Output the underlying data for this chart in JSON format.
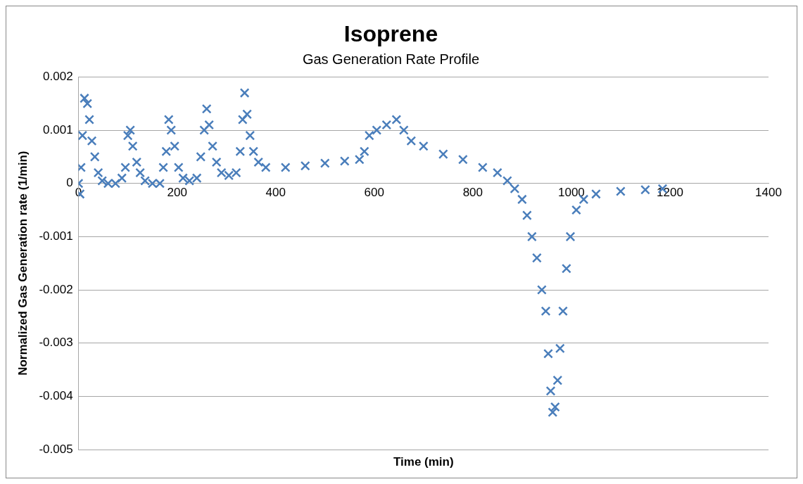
{
  "chart_data": {
    "type": "scatter",
    "title": "Isoprene",
    "subtitle": "Gas Generation Rate Profile",
    "xlabel": "Time (min)",
    "ylabel": "Normalized Gas Generation rate (1/min)",
    "xlim": [
      0,
      1400
    ],
    "xticks": [
      0,
      200,
      400,
      600,
      800,
      1000,
      1200,
      1400
    ],
    "ylim": [
      -0.005,
      0.002
    ],
    "yticks": [
      -0.005,
      -0.004,
      -0.003,
      -0.002,
      -0.001,
      0,
      0.001,
      0.002
    ],
    "grid": "y",
    "legend": false,
    "marker": "cross",
    "series": [
      {
        "color": "#4a7ebb",
        "x": [
          0,
          3,
          5,
          8,
          12,
          18,
          22,
          27,
          33,
          40,
          48,
          60,
          75,
          88,
          95,
          100,
          105,
          110,
          118,
          125,
          135,
          150,
          165,
          172,
          178,
          183,
          188,
          195,
          203,
          212,
          225,
          240,
          248,
          255,
          260,
          265,
          272,
          280,
          290,
          305,
          320,
          328,
          333,
          337,
          342,
          348,
          355,
          365,
          380,
          420,
          460,
          500,
          540,
          570,
          580,
          590,
          605,
          625,
          645,
          660,
          675,
          700,
          740,
          780,
          820,
          850,
          870,
          885,
          900,
          910,
          920,
          930,
          940,
          948,
          953,
          958,
          962,
          967,
          972,
          977,
          983,
          990,
          998,
          1010,
          1025,
          1050,
          1100,
          1150,
          1185
        ],
        "values": [
          0,
          -0.0002,
          0.0003,
          0.0009,
          0.0016,
          0.0015,
          0.0012,
          0.0008,
          0.0005,
          0.0002,
          5e-05,
          0,
          0,
          0.0001,
          0.0003,
          0.0009,
          0.001,
          0.0007,
          0.0004,
          0.0002,
          5e-05,
          0,
          0,
          0.0003,
          0.0006,
          0.0012,
          0.001,
          0.0007,
          0.0003,
          0.0001,
          5e-05,
          0.0001,
          0.0005,
          0.001,
          0.0014,
          0.0011,
          0.0007,
          0.0004,
          0.0002,
          0.00015,
          0.0002,
          0.0006,
          0.0012,
          0.0017,
          0.0013,
          0.0009,
          0.0006,
          0.0004,
          0.0003,
          0.0003,
          0.00033,
          0.00038,
          0.00042,
          0.00045,
          0.0006,
          0.0009,
          0.001,
          0.0011,
          0.0012,
          0.001,
          0.0008,
          0.0007,
          0.00055,
          0.00045,
          0.0003,
          0.0002,
          5e-05,
          -0.0001,
          -0.0003,
          -0.0006,
          -0.001,
          -0.0014,
          -0.002,
          -0.0024,
          -0.0032,
          -0.0039,
          -0.0043,
          -0.0042,
          -0.0037,
          -0.0031,
          -0.0024,
          -0.0016,
          -0.001,
          -0.0005,
          -0.0003,
          -0.0002,
          -0.00015,
          -0.00012,
          -0.0001
        ]
      }
    ]
  }
}
